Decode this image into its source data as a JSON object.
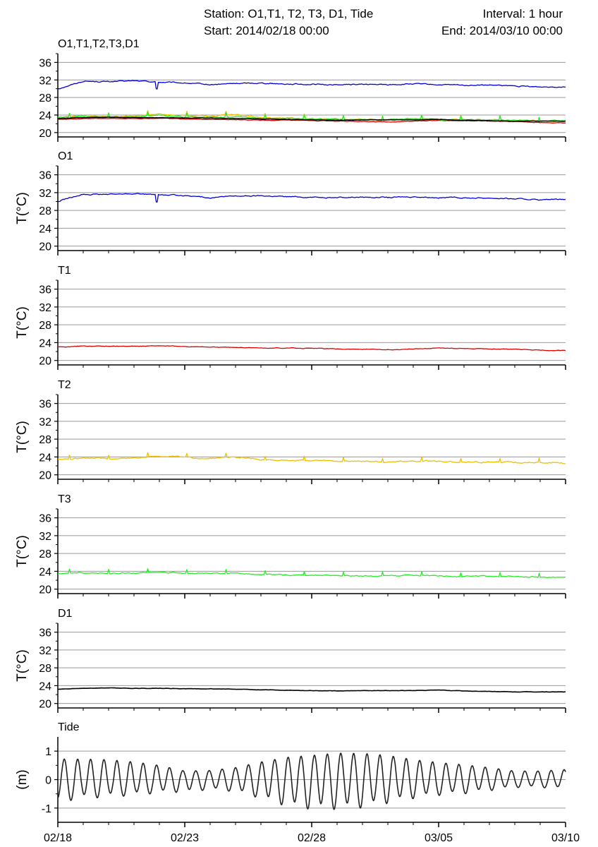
{
  "header": {
    "station": "Station: O1,T1, T2, T3, D1, Tide",
    "interval": "Interval: 1 hour",
    "start": "Start: 2014/02/18 00:00",
    "end": "End: 2014/03/10 00:00"
  },
  "colors": {
    "O1": "#0000dd",
    "T1": "#dd0000",
    "T2": "#f0c000",
    "T3": "#22ee22",
    "D1": "#000000",
    "Tide": "#222222",
    "grid": "#999999"
  },
  "chart_data": [
    {
      "type": "line",
      "title": "O1,T1,T2,T3,D1",
      "ylabel": "",
      "ylim": [
        19,
        38
      ],
      "yticks": [
        20,
        24,
        28,
        32,
        36
      ],
      "xlim": [
        "2014-02-18",
        "2014-03-10"
      ],
      "xticks": [
        "02/18",
        "02/23",
        "02/28",
        "03/05",
        "03/10"
      ],
      "grid": true,
      "series": [
        {
          "key": "O1",
          "x": [
            "02/18",
            "02/19",
            "02/20",
            "02/21",
            "02/22",
            "02/23",
            "02/24",
            "02/25",
            "02/26",
            "02/27",
            "02/28",
            "03/01",
            "03/02",
            "03/03",
            "03/04",
            "03/05",
            "03/06",
            "03/07",
            "03/08",
            "03/09",
            "03/10"
          ],
          "values": [
            30.0,
            31.7,
            31.6,
            31.8,
            31.5,
            31.3,
            30.9,
            31.2,
            31.3,
            31.1,
            31.0,
            30.9,
            31.0,
            30.9,
            31.1,
            30.9,
            30.8,
            30.8,
            30.6,
            30.4,
            30.5
          ]
        },
        {
          "key": "T1",
          "x": [
            "02/18",
            "02/19",
            "02/20",
            "02/21",
            "02/22",
            "02/23",
            "02/24",
            "02/25",
            "02/26",
            "02/27",
            "02/28",
            "03/01",
            "03/02",
            "03/03",
            "03/04",
            "03/05",
            "03/06",
            "03/07",
            "03/08",
            "03/09",
            "03/10"
          ],
          "values": [
            23.0,
            23.2,
            23.2,
            23.2,
            23.3,
            23.1,
            23.0,
            22.9,
            22.8,
            22.8,
            22.7,
            22.6,
            22.5,
            22.4,
            22.6,
            22.8,
            22.7,
            22.6,
            22.5,
            22.3,
            22.2
          ]
        },
        {
          "key": "T2",
          "x": [
            "02/18",
            "02/19",
            "02/20",
            "02/21",
            "02/22",
            "02/23",
            "02/24",
            "02/25",
            "02/26",
            "02/27",
            "02/28",
            "03/01",
            "03/02",
            "03/03",
            "03/04",
            "03/05",
            "03/06",
            "03/07",
            "03/08",
            "03/09",
            "03/10"
          ],
          "values": [
            23.4,
            23.8,
            23.6,
            23.8,
            24.2,
            23.9,
            23.7,
            24.0,
            23.4,
            23.3,
            23.2,
            23.0,
            23.0,
            22.9,
            23.1,
            23.0,
            22.9,
            22.8,
            22.8,
            22.7,
            22.6
          ]
        },
        {
          "key": "T3",
          "x": [
            "02/18",
            "02/19",
            "02/20",
            "02/21",
            "02/22",
            "02/23",
            "02/24",
            "02/25",
            "02/26",
            "02/27",
            "02/28",
            "03/01",
            "03/02",
            "03/03",
            "03/04",
            "03/05",
            "03/06",
            "03/07",
            "03/08",
            "03/09",
            "03/10"
          ],
          "values": [
            23.4,
            23.7,
            23.5,
            23.6,
            23.9,
            23.6,
            23.5,
            23.6,
            23.3,
            23.2,
            23.1,
            23.0,
            22.9,
            22.9,
            23.1,
            23.0,
            22.9,
            22.9,
            22.8,
            22.7,
            22.7
          ]
        },
        {
          "key": "D1",
          "x": [
            "02/18",
            "02/19",
            "02/20",
            "02/21",
            "02/22",
            "02/23",
            "02/24",
            "02/25",
            "02/26",
            "02/27",
            "02/28",
            "03/01",
            "03/02",
            "03/03",
            "03/04",
            "03/05",
            "03/06",
            "03/07",
            "03/08",
            "03/09",
            "03/10"
          ],
          "values": [
            23.2,
            23.4,
            23.5,
            23.4,
            23.4,
            23.3,
            23.3,
            23.2,
            23.1,
            23.0,
            22.9,
            22.8,
            22.9,
            22.9,
            22.9,
            23.0,
            22.8,
            22.7,
            22.6,
            22.6,
            22.6
          ]
        }
      ]
    },
    {
      "type": "line",
      "title": "O1",
      "ylabel": "T(°C)",
      "ylim": [
        19,
        38
      ],
      "yticks": [
        20,
        24,
        28,
        32,
        36
      ],
      "xticks": [
        "02/18",
        "02/23",
        "02/28",
        "03/05",
        "03/10"
      ],
      "grid": true,
      "series": [
        {
          "key": "O1",
          "x": [
            "02/18",
            "02/19",
            "02/20",
            "02/21",
            "02/22",
            "02/23",
            "02/24",
            "02/25",
            "02/26",
            "02/27",
            "02/28",
            "03/01",
            "03/02",
            "03/03",
            "03/04",
            "03/05",
            "03/06",
            "03/07",
            "03/08",
            "03/09",
            "03/10"
          ],
          "values": [
            30.0,
            31.7,
            31.6,
            31.8,
            31.5,
            31.3,
            30.9,
            31.2,
            31.3,
            31.1,
            31.0,
            30.9,
            31.0,
            30.9,
            31.1,
            30.9,
            30.8,
            30.8,
            30.6,
            30.4,
            30.5
          ]
        }
      ]
    },
    {
      "type": "line",
      "title": "T1",
      "ylabel": "T(°C)",
      "ylim": [
        19,
        38
      ],
      "yticks": [
        20,
        24,
        28,
        32,
        36
      ],
      "xticks": [
        "02/18",
        "02/23",
        "02/28",
        "03/05",
        "03/10"
      ],
      "grid": true,
      "series": [
        {
          "key": "T1",
          "x": [
            "02/18",
            "02/19",
            "02/20",
            "02/21",
            "02/22",
            "02/23",
            "02/24",
            "02/25",
            "02/26",
            "02/27",
            "02/28",
            "03/01",
            "03/02",
            "03/03",
            "03/04",
            "03/05",
            "03/06",
            "03/07",
            "03/08",
            "03/09",
            "03/10"
          ],
          "values": [
            23.0,
            23.2,
            23.2,
            23.2,
            23.3,
            23.1,
            23.0,
            22.9,
            22.8,
            22.8,
            22.7,
            22.6,
            22.5,
            22.4,
            22.6,
            22.8,
            22.7,
            22.6,
            22.5,
            22.3,
            22.2
          ]
        }
      ]
    },
    {
      "type": "line",
      "title": "T2",
      "ylabel": "T(°C)",
      "ylim": [
        19,
        38
      ],
      "yticks": [
        20,
        24,
        28,
        32,
        36
      ],
      "xticks": [
        "02/18",
        "02/23",
        "02/28",
        "03/05",
        "03/10"
      ],
      "grid": true,
      "series": [
        {
          "key": "T2",
          "x": [
            "02/18",
            "02/19",
            "02/20",
            "02/21",
            "02/22",
            "02/23",
            "02/24",
            "02/25",
            "02/26",
            "02/27",
            "02/28",
            "03/01",
            "03/02",
            "03/03",
            "03/04",
            "03/05",
            "03/06",
            "03/07",
            "03/08",
            "03/09",
            "03/10"
          ],
          "values": [
            23.4,
            23.8,
            23.6,
            23.8,
            24.2,
            23.9,
            23.7,
            24.0,
            23.4,
            23.3,
            23.2,
            23.0,
            23.0,
            22.9,
            23.1,
            23.0,
            22.9,
            22.8,
            22.8,
            22.7,
            22.6
          ]
        }
      ]
    },
    {
      "type": "line",
      "title": "T3",
      "ylabel": "T(°C)",
      "ylim": [
        19,
        38
      ],
      "yticks": [
        20,
        24,
        28,
        32,
        36
      ],
      "xticks": [
        "02/18",
        "02/23",
        "02/28",
        "03/05",
        "03/10"
      ],
      "grid": true,
      "series": [
        {
          "key": "T3",
          "x": [
            "02/18",
            "02/19",
            "02/20",
            "02/21",
            "02/22",
            "02/23",
            "02/24",
            "02/25",
            "02/26",
            "02/27",
            "02/28",
            "03/01",
            "03/02",
            "03/03",
            "03/04",
            "03/05",
            "03/06",
            "03/07",
            "03/08",
            "03/09",
            "03/10"
          ],
          "values": [
            23.4,
            23.7,
            23.5,
            23.6,
            23.9,
            23.6,
            23.5,
            23.6,
            23.3,
            23.2,
            23.1,
            23.0,
            22.9,
            22.9,
            23.1,
            23.0,
            22.9,
            22.9,
            22.8,
            22.7,
            22.7
          ]
        }
      ]
    },
    {
      "type": "line",
      "title": "D1",
      "ylabel": "T(°C)",
      "ylim": [
        19,
        38
      ],
      "yticks": [
        20,
        24,
        28,
        32,
        36
      ],
      "xticks": [
        "02/18",
        "02/23",
        "02/28",
        "03/05",
        "03/10"
      ],
      "grid": true,
      "series": [
        {
          "key": "D1",
          "x": [
            "02/18",
            "02/19",
            "02/20",
            "02/21",
            "02/22",
            "02/23",
            "02/24",
            "02/25",
            "02/26",
            "02/27",
            "02/28",
            "03/01",
            "03/02",
            "03/03",
            "03/04",
            "03/05",
            "03/06",
            "03/07",
            "03/08",
            "03/09",
            "03/10"
          ],
          "values": [
            23.2,
            23.4,
            23.5,
            23.4,
            23.4,
            23.3,
            23.3,
            23.2,
            23.1,
            23.0,
            22.9,
            22.8,
            22.9,
            22.9,
            22.9,
            23.0,
            22.8,
            22.7,
            22.6,
            22.6,
            22.6
          ]
        }
      ]
    },
    {
      "type": "line",
      "title": "Tide",
      "ylabel": "(m)",
      "ylim": [
        -1.5,
        1.5
      ],
      "yticks": [
        -1,
        0,
        1
      ],
      "xticks": [
        "02/18",
        "02/23",
        "02/28",
        "03/05",
        "03/10"
      ],
      "grid": true,
      "series": [
        {
          "key": "Tide",
          "x": [
            "02/18",
            "02/19",
            "02/20",
            "02/21",
            "02/22",
            "02/23",
            "02/24",
            "02/25",
            "02/26",
            "02/27",
            "02/28",
            "03/01",
            "03/02",
            "03/03",
            "03/04",
            "03/05",
            "03/06",
            "03/07",
            "03/08",
            "03/09",
            "03/10"
          ],
          "values": [
            -0.7,
            0.7,
            -0.6,
            0.7,
            -0.5,
            0.5,
            -0.3,
            0.3,
            -0.4,
            0.6,
            -0.8,
            0.8,
            -0.9,
            0.9,
            -0.6,
            0.6,
            -0.4,
            0.4,
            -0.3,
            0.3,
            0.0
          ],
          "high_amplitude": [
            0.72,
            0.72,
            0.7,
            0.62,
            0.5,
            0.3,
            0.32,
            0.42,
            0.62,
            0.78,
            0.85,
            0.93,
            0.92,
            0.85,
            0.7,
            0.6,
            0.52,
            0.42,
            0.3,
            0.3,
            0.35
          ],
          "low_amplitude": [
            -0.72,
            -0.6,
            -0.55,
            -0.5,
            -0.42,
            -0.4,
            -0.32,
            -0.38,
            -0.6,
            -0.85,
            -0.95,
            -0.95,
            -0.9,
            -0.75,
            -0.6,
            -0.5,
            -0.45,
            -0.35,
            -0.25,
            -0.25,
            -0.3
          ]
        }
      ]
    }
  ]
}
